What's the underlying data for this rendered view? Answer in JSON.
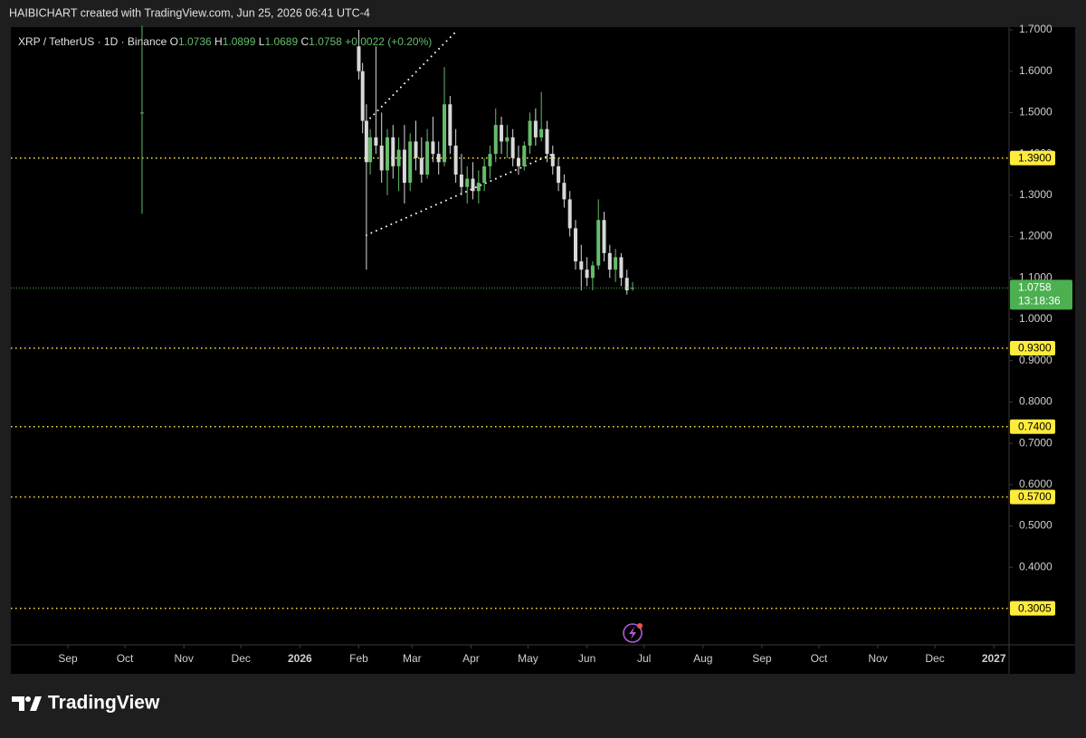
{
  "header": "HAIBICHART created with TradingView.com, Jun 25, 2026 06:41 UTC-4",
  "footer": "TradingView",
  "chart_data": {
    "type": "candlestick",
    "title": "XRP / TetherUS · 1D · Binance",
    "ohlc_labels": [
      "O",
      "H",
      "L",
      "C"
    ],
    "change": "+0.0022 (+0.20%)",
    "countdown": "13:18:36",
    "x": [
      "2025-10-10",
      "2026-02-01",
      "2026-02-03",
      "2026-02-05",
      "2026-02-07",
      "2026-02-10",
      "2026-02-13",
      "2026-02-16",
      "2026-02-19",
      "2026-02-22",
      "2026-02-25",
      "2026-02-28",
      "2026-03-03",
      "2026-03-06",
      "2026-03-09",
      "2026-03-12",
      "2026-03-15",
      "2026-03-18",
      "2026-03-21",
      "2026-03-24",
      "2026-03-27",
      "2026-03-30",
      "2026-04-02",
      "2026-04-05",
      "2026-04-08",
      "2026-04-11",
      "2026-04-14",
      "2026-04-17",
      "2026-04-20",
      "2026-04-23",
      "2026-04-26",
      "2026-04-29",
      "2026-05-02",
      "2026-05-05",
      "2026-05-08",
      "2026-05-11",
      "2026-05-14",
      "2026-05-17",
      "2026-05-20",
      "2026-05-23",
      "2026-05-26",
      "2026-05-29",
      "2026-06-01",
      "2026-06-04",
      "2026-06-07",
      "2026-06-10",
      "2026-06-13",
      "2026-06-16",
      "2026-06-19",
      "2026-06-22",
      "2026-06-25"
    ],
    "open": [
      1.5,
      1.66,
      1.6,
      1.48,
      1.38,
      1.44,
      1.42,
      1.36,
      1.44,
      1.37,
      1.41,
      1.33,
      1.43,
      1.39,
      1.35,
      1.43,
      1.4,
      1.38,
      1.52,
      1.42,
      1.35,
      1.32,
      1.34,
      1.31,
      1.33,
      1.37,
      1.4,
      1.47,
      1.43,
      1.44,
      1.39,
      1.37,
      1.42,
      1.48,
      1.44,
      1.46,
      1.4,
      1.37,
      1.33,
      1.29,
      1.22,
      1.14,
      1.12,
      1.1,
      1.13,
      1.24,
      1.16,
      1.12,
      1.15,
      1.1,
      1.0736
    ],
    "high": [
      1.71,
      1.7,
      1.62,
      1.52,
      1.46,
      1.66,
      1.5,
      1.46,
      1.47,
      1.44,
      1.47,
      1.45,
      1.48,
      1.44,
      1.46,
      1.49,
      1.43,
      1.61,
      1.54,
      1.46,
      1.4,
      1.37,
      1.38,
      1.36,
      1.39,
      1.42,
      1.51,
      1.49,
      1.47,
      1.46,
      1.42,
      1.43,
      1.5,
      1.51,
      1.55,
      1.48,
      1.42,
      1.39,
      1.35,
      1.31,
      1.24,
      1.18,
      1.15,
      1.14,
      1.29,
      1.26,
      1.18,
      1.17,
      1.16,
      1.12,
      1.0899
    ],
    "low": [
      1.255,
      1.58,
      1.45,
      1.12,
      1.35,
      1.4,
      1.33,
      1.3,
      1.34,
      1.31,
      1.28,
      1.31,
      1.36,
      1.33,
      1.34,
      1.38,
      1.35,
      1.37,
      1.4,
      1.33,
      1.3,
      1.28,
      1.29,
      1.28,
      1.31,
      1.34,
      1.38,
      1.4,
      1.39,
      1.37,
      1.35,
      1.36,
      1.4,
      1.42,
      1.43,
      1.38,
      1.35,
      1.31,
      1.27,
      1.2,
      1.12,
      1.07,
      1.08,
      1.07,
      1.12,
      1.14,
      1.1,
      1.09,
      1.08,
      1.06,
      1.0689
    ],
    "close": [
      1.5,
      1.6,
      1.48,
      1.38,
      1.44,
      1.42,
      1.36,
      1.44,
      1.37,
      1.41,
      1.33,
      1.43,
      1.39,
      1.35,
      1.43,
      1.4,
      1.38,
      1.52,
      1.42,
      1.35,
      1.32,
      1.34,
      1.31,
      1.33,
      1.37,
      1.4,
      1.47,
      1.43,
      1.44,
      1.39,
      1.37,
      1.42,
      1.48,
      1.44,
      1.46,
      1.4,
      1.37,
      1.33,
      1.29,
      1.22,
      1.14,
      1.12,
      1.1,
      1.13,
      1.24,
      1.16,
      1.12,
      1.15,
      1.1,
      1.07,
      1.0758
    ],
    "up_color": "#66bb6a",
    "down_color": "#d8d8d8",
    "ylim": [
      0.2123,
      1.7066
    ],
    "yticks": [
      {
        "value": 1.7,
        "label": "1.7000"
      },
      {
        "value": 1.6,
        "label": "1.6000"
      },
      {
        "value": 1.5,
        "label": "1.5000"
      },
      {
        "value": 1.4,
        "label": "1.4000"
      },
      {
        "value": 1.3,
        "label": "1.3000"
      },
      {
        "value": 1.2,
        "label": "1.2000"
      },
      {
        "value": 1.1,
        "label": "1.1000"
      },
      {
        "value": 1.0,
        "label": "1.0000"
      },
      {
        "value": 0.9,
        "label": "0.9000"
      },
      {
        "value": 0.8,
        "label": "0.8000"
      },
      {
        "value": 0.7,
        "label": "0.7000"
      },
      {
        "value": 0.6,
        "label": "0.6000"
      },
      {
        "value": 0.5,
        "label": "0.5000"
      },
      {
        "value": 0.4,
        "label": "0.4000"
      }
    ],
    "xlim": [
      "2025-08-02",
      "2027-01-09"
    ],
    "xticks": [
      {
        "value": "2025-09-01",
        "label": "Sep"
      },
      {
        "value": "2025-10-01",
        "label": "Oct"
      },
      {
        "value": "2025-11-01",
        "label": "Nov"
      },
      {
        "value": "2025-12-01",
        "label": "Dec"
      },
      {
        "value": "2026-01-01",
        "label": "2026"
      },
      {
        "value": "2026-02-01",
        "label": "Feb"
      },
      {
        "value": "2026-03-01",
        "label": "Mar"
      },
      {
        "value": "2026-04-01",
        "label": "Apr"
      },
      {
        "value": "2026-05-01",
        "label": "May"
      },
      {
        "value": "2026-06-01",
        "label": "Jun"
      },
      {
        "value": "2026-07-01",
        "label": "Jul"
      },
      {
        "value": "2026-08-01",
        "label": "Aug"
      },
      {
        "value": "2026-09-01",
        "label": "Sep"
      },
      {
        "value": "2026-10-01",
        "label": "Oct"
      },
      {
        "value": "2026-11-01",
        "label": "Nov"
      },
      {
        "value": "2026-12-01",
        "label": "Dec"
      },
      {
        "value": "2027-01-01",
        "label": "2027"
      }
    ],
    "grid": false,
    "levels": [
      {
        "value": 1.39,
        "label": "1.3900"
      },
      {
        "value": 0.93,
        "label": "0.9300"
      },
      {
        "value": 0.74,
        "label": "0.7400"
      },
      {
        "value": 0.57,
        "label": "0.5700"
      },
      {
        "value": 0.3005,
        "label": "0.3005"
      }
    ],
    "level_color": "#ffeb3b",
    "last_price_color": "#4caf50",
    "trendlines": [
      {
        "x": [
          "2026-02-05",
          "2026-03-25"
        ],
        "y": [
          1.477,
          1.7
        ]
      },
      {
        "x": [
          "2026-02-05",
          "2026-05-14"
        ],
        "y": [
          1.2035,
          1.4
        ]
      }
    ]
  }
}
